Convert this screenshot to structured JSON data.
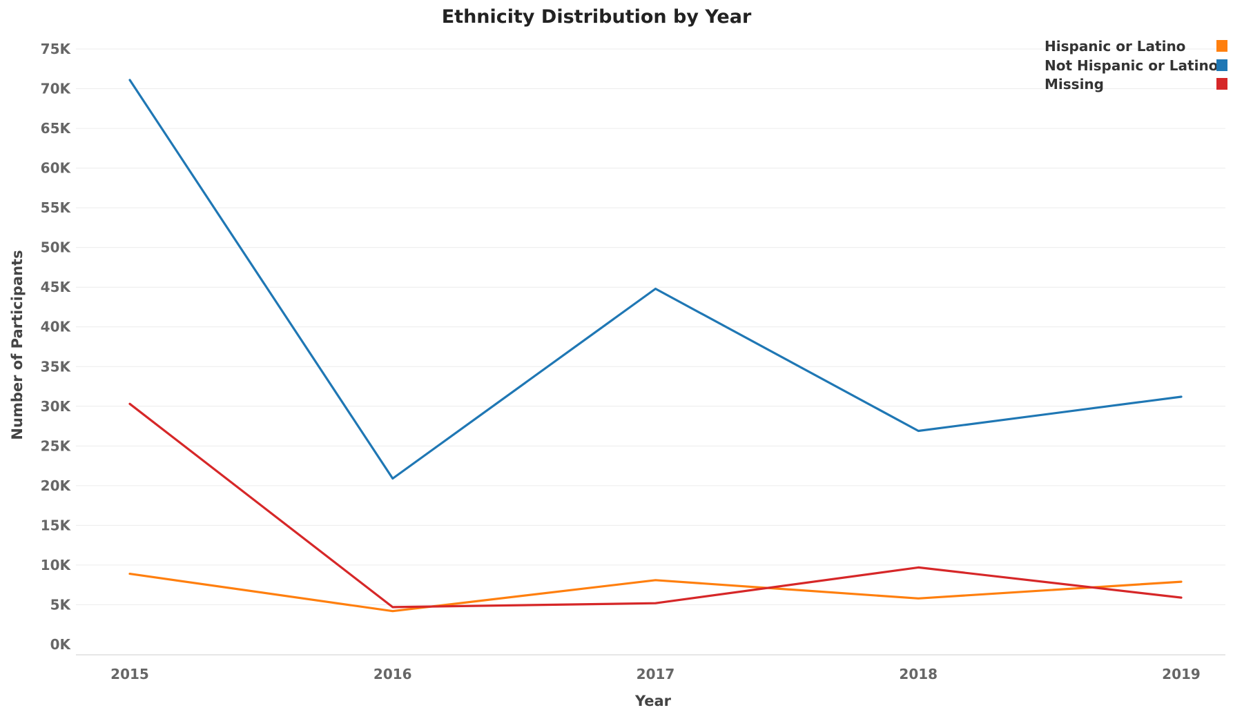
{
  "chart_data": {
    "type": "line",
    "title": "Ethnicity Distribution by Year",
    "xlabel": "Year",
    "ylabel": "Number of Participants",
    "categories": [
      "2015",
      "2016",
      "2017",
      "2018",
      "2019"
    ],
    "ylim": [
      0,
      75000
    ],
    "yticks": [
      {
        "value": 0,
        "label": "0K"
      },
      {
        "value": 5000,
        "label": "5K"
      },
      {
        "value": 10000,
        "label": "10K"
      },
      {
        "value": 15000,
        "label": "15K"
      },
      {
        "value": 20000,
        "label": "20K"
      },
      {
        "value": 25000,
        "label": "25K"
      },
      {
        "value": 30000,
        "label": "30K"
      },
      {
        "value": 35000,
        "label": "35K"
      },
      {
        "value": 40000,
        "label": "40K"
      },
      {
        "value": 45000,
        "label": "45K"
      },
      {
        "value": 50000,
        "label": "50K"
      },
      {
        "value": 55000,
        "label": "55K"
      },
      {
        "value": 60000,
        "label": "60K"
      },
      {
        "value": 65000,
        "label": "65K"
      },
      {
        "value": 70000,
        "label": "70K"
      },
      {
        "value": 75000,
        "label": "75K"
      }
    ],
    "grid": true,
    "legend_position": "top-right",
    "series": [
      {
        "name": "Hispanic or Latino",
        "color": "#ff7f0e",
        "values": [
          8900,
          4200,
          8100,
          5800,
          7900
        ]
      },
      {
        "name": "Not Hispanic or Latino",
        "color": "#1f77b4",
        "values": [
          71100,
          20900,
          44800,
          26900,
          31200
        ]
      },
      {
        "name": "Missing",
        "color": "#d62728",
        "values": [
          30300,
          4700,
          5200,
          9700,
          5900
        ]
      }
    ]
  }
}
